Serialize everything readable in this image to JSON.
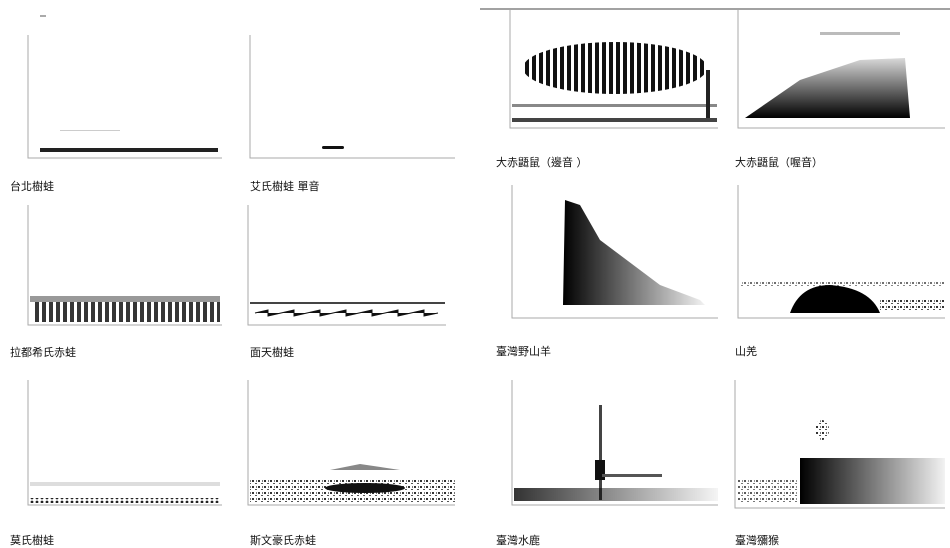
{
  "panels": [
    {
      "caption": "台北樹蛙"
    },
    {
      "caption": "艾氏樹蛙 單音"
    },
    {
      "caption": "拉都希氏赤蛙"
    },
    {
      "caption": "面天樹蛙"
    },
    {
      "caption": "莫氏樹蛙"
    },
    {
      "caption": "斯文豪氏赤蛙"
    },
    {
      "caption": "大赤鼯鼠（邊音 ）"
    },
    {
      "caption": "大赤鼯鼠（喔音）"
    },
    {
      "caption": "臺灣野山羊"
    },
    {
      "caption": "山羌"
    },
    {
      "caption": "臺灣水鹿"
    },
    {
      "caption": "臺灣獼猴"
    }
  ]
}
